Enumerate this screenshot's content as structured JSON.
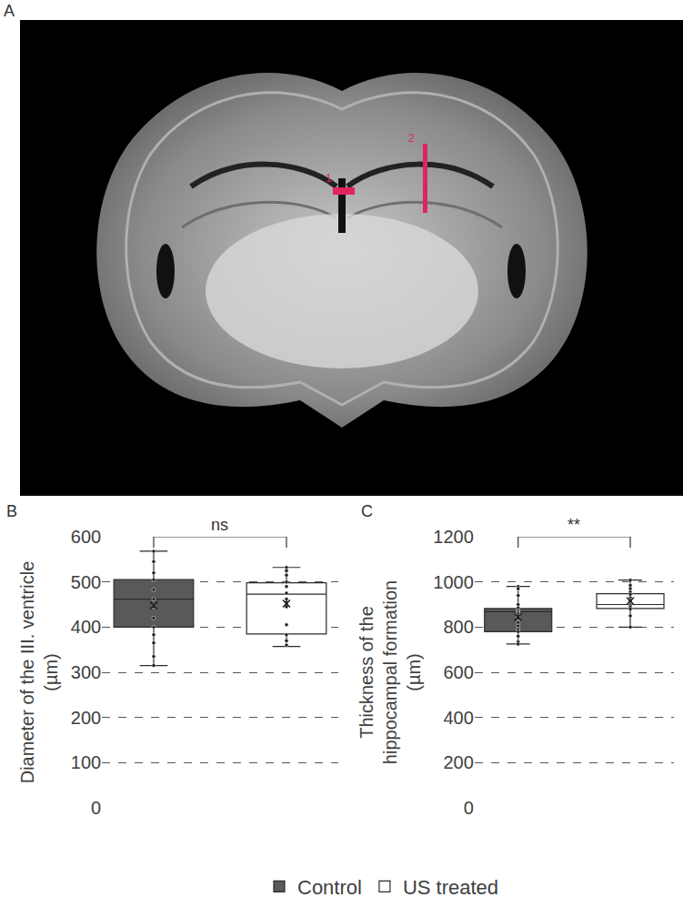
{
  "panel_a": {
    "label": "A",
    "annotations": [
      "1",
      "2"
    ]
  },
  "chart_data": [
    {
      "type": "box",
      "panel": "B",
      "y_label": "Diameter of the III. ventricle (µm)",
      "categories": [
        "Control",
        "US treated"
      ],
      "tick_labels": "y",
      "ylim": [
        0,
        600
      ],
      "yticks": [
        0,
        100,
        200,
        300,
        400,
        500,
        600
      ],
      "grid": true,
      "legend": "bottom",
      "significance": {
        "from": "Control",
        "to": "US treated",
        "label": "ns"
      },
      "series": [
        {
          "name": "Control",
          "color": "#595959",
          "q1": 400,
          "median": 462,
          "q3": 505,
          "lowerfence": 315,
          "upperfence": 568,
          "mean": 448,
          "points": [
            568,
            545,
            520,
            505,
            483,
            462,
            445,
            420,
            400,
            383,
            365,
            335,
            315
          ]
        },
        {
          "name": "US treated",
          "color": "#ffffff",
          "q1": 385,
          "median": 473,
          "q3": 498,
          "lowerfence": 357,
          "upperfence": 532,
          "mean": 452,
          "points": [
            532,
            525,
            515,
            500,
            490,
            475,
            462,
            455,
            450,
            445,
            405,
            383,
            370,
            360
          ]
        }
      ]
    },
    {
      "type": "box",
      "panel": "C",
      "y_label": "Thickness of the hippocampal formation (µm)",
      "categories": [
        "Control",
        "US treated"
      ],
      "tick_labels": "y",
      "ylim": [
        0,
        1200
      ],
      "yticks": [
        0,
        200,
        400,
        600,
        800,
        1000,
        1200
      ],
      "grid": true,
      "significance": {
        "from": "Control",
        "to": "US treated",
        "label": "**"
      },
      "series": [
        {
          "name": "Control",
          "color": "#595959",
          "q1": 780,
          "median": 868,
          "q3": 882,
          "lowerfence": 725,
          "upperfence": 980,
          "mean": 845,
          "points": [
            980,
            970,
            940,
            900,
            885,
            872,
            865,
            860,
            850,
            840,
            820,
            805,
            790,
            780,
            760,
            735,
            725
          ]
        },
        {
          "name": "US treated",
          "color": "#ffffff",
          "q1": 882,
          "median": 900,
          "q3": 948,
          "lowerfence": 800,
          "upperfence": 1008,
          "mean": 915,
          "points": [
            1008,
            985,
            970,
            955,
            945,
            930,
            920,
            915,
            900,
            895,
            888,
            880,
            850,
            800
          ]
        }
      ]
    }
  ]
}
